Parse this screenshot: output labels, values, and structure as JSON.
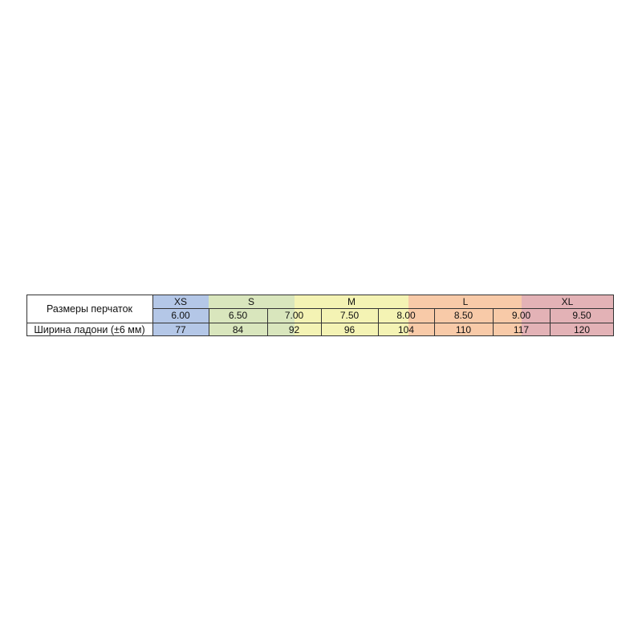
{
  "table": {
    "row_label_sizes": "Размеры перчаток",
    "row_label_width": "Ширина ладони (±6 мм)",
    "size_groups": [
      {
        "label": "XS",
        "color": "#b4c7e7"
      },
      {
        "label": "S",
        "color": "#d9e6bd"
      },
      {
        "label": "M",
        "color": "#f4f3b4"
      },
      {
        "label": "L",
        "color": "#f8caa8"
      },
      {
        "label": "XL",
        "color": "#e3b2b6"
      }
    ],
    "sizes": [
      "6.00",
      "6.50",
      "7.00",
      "7.50",
      "8.00",
      "8.50",
      "9.00",
      "9.50"
    ],
    "widths": [
      "77",
      "84",
      "92",
      "96",
      "104",
      "110",
      "117",
      "120"
    ]
  }
}
